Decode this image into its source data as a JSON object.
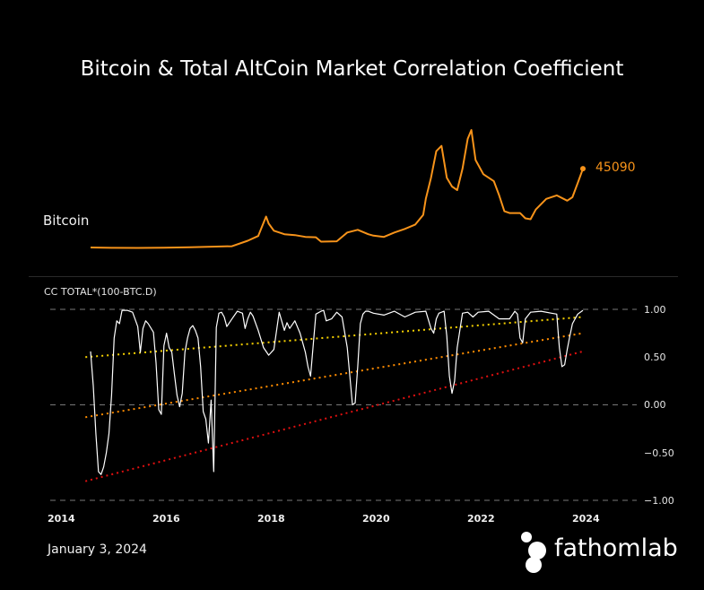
{
  "title": "Bitcoin & Total AltCoin Market Correlation Coefficient",
  "date": "January 3, 2024",
  "brand": "fathomlab",
  "chart_data": [
    {
      "type": "line",
      "name": "bitcoin-price",
      "label": "Bitcoin",
      "color": "#f7931a",
      "last_value_label": "45090",
      "x": [
        2014.6,
        2015.0,
        2015.5,
        2016.0,
        2016.5,
        2017.0,
        2017.3,
        2017.6,
        2017.8,
        2017.95,
        2018.0,
        2018.1,
        2018.3,
        2018.5,
        2018.7,
        2018.9,
        2019.0,
        2019.3,
        2019.5,
        2019.7,
        2019.9,
        2020.0,
        2020.2,
        2020.4,
        2020.6,
        2020.8,
        2020.95,
        2021.0,
        2021.1,
        2021.2,
        2021.3,
        2021.4,
        2021.5,
        2021.6,
        2021.7,
        2021.8,
        2021.87,
        2021.95,
        2022.1,
        2022.3,
        2022.4,
        2022.5,
        2022.6,
        2022.8,
        2022.9,
        2023.0,
        2023.1,
        2023.3,
        2023.5,
        2023.7,
        2023.8,
        2023.9,
        2024.0
      ],
      "y": [
        500,
        300,
        250,
        430,
        650,
        1000,
        1200,
        4300,
        7000,
        18000,
        14000,
        10000,
        8000,
        7500,
        6500,
        6300,
        3800,
        4000,
        9000,
        10500,
        8000,
        7200,
        6500,
        9000,
        11000,
        13500,
        19000,
        28000,
        40000,
        55000,
        58000,
        40000,
        35000,
        33000,
        45000,
        62000,
        67000,
        50000,
        42000,
        38000,
        30000,
        21000,
        20000,
        20000,
        17000,
        16500,
        22000,
        28000,
        30000,
        27000,
        29000,
        37000,
        45090
      ],
      "y_scale": "linear"
    },
    {
      "type": "line",
      "name": "correlation-coefficient",
      "label": "CC TOTAL*(100-BTC.D)",
      "yticks": [
        "1.00",
        "0.50",
        "0.00",
        "−0.50",
        "−1.00"
      ],
      "ylim": [
        -1,
        1
      ],
      "xticks": [
        "2014",
        "2016",
        "2018",
        "2020",
        "2022",
        "2024"
      ],
      "xlim": [
        2013.8,
        2025.0
      ],
      "gridlines": [
        1.0,
        0.0,
        -1.0
      ],
      "series": [
        {
          "name": "correlation",
          "color": "#ffffff",
          "x": [
            2014.6,
            2014.65,
            2014.7,
            2014.75,
            2014.8,
            2014.85,
            2014.9,
            2014.95,
            2015.0,
            2015.05,
            2015.1,
            2015.15,
            2015.2,
            2015.3,
            2015.4,
            2015.5,
            2015.55,
            2015.6,
            2015.65,
            2015.7,
            2015.8,
            2015.85,
            2015.9,
            2015.95,
            2016.0,
            2016.05,
            2016.1,
            2016.15,
            2016.2,
            2016.25,
            2016.3,
            2016.35,
            2016.4,
            2016.45,
            2016.5,
            2016.55,
            2016.6,
            2016.65,
            2016.7,
            2016.75,
            2016.8,
            2016.85,
            2016.9,
            2016.95,
            2017.0,
            2017.05,
            2017.1,
            2017.15,
            2017.2,
            2017.3,
            2017.4,
            2017.5,
            2017.55,
            2017.6,
            2017.65,
            2017.7,
            2017.8,
            2017.9,
            2018.0,
            2018.1,
            2018.2,
            2018.3,
            2018.35,
            2018.4,
            2018.5,
            2018.6,
            2018.7,
            2018.75,
            2018.8,
            2018.9,
            2019.0,
            2019.05,
            2019.1,
            2019.2,
            2019.3,
            2019.4,
            2019.5,
            2019.55,
            2019.6,
            2019.65,
            2019.7,
            2019.75,
            2019.8,
            2019.85,
            2019.9,
            2020.0,
            2020.2,
            2020.4,
            2020.6,
            2020.8,
            2021.0,
            2021.1,
            2021.15,
            2021.2,
            2021.25,
            2021.3,
            2021.35,
            2021.4,
            2021.45,
            2021.5,
            2021.55,
            2021.6,
            2021.7,
            2021.8,
            2021.9,
            2022.0,
            2022.2,
            2022.4,
            2022.6,
            2022.7,
            2022.75,
            2022.8,
            2022.85,
            2022.9,
            2023.0,
            2023.2,
            2023.4,
            2023.5,
            2023.55,
            2023.6,
            2023.65,
            2023.7,
            2023.75,
            2023.8,
            2023.9,
            2024.0
          ],
          "y": [
            0.56,
            0.2,
            -0.3,
            -0.7,
            -0.73,
            -0.65,
            -0.5,
            -0.3,
            0.1,
            0.7,
            0.88,
            0.85,
            0.99,
            0.99,
            0.97,
            0.82,
            0.55,
            0.8,
            0.88,
            0.85,
            0.76,
            0.44,
            -0.05,
            -0.1,
            0.62,
            0.75,
            0.6,
            0.55,
            0.32,
            0.1,
            -0.02,
            0.12,
            0.55,
            0.7,
            0.8,
            0.83,
            0.78,
            0.7,
            0.4,
            -0.07,
            -0.15,
            -0.4,
            0.05,
            -0.7,
            0.81,
            0.96,
            0.97,
            0.92,
            0.82,
            0.9,
            0.98,
            0.96,
            0.8,
            0.9,
            0.97,
            0.93,
            0.78,
            0.6,
            0.52,
            0.58,
            0.97,
            0.78,
            0.86,
            0.8,
            0.88,
            0.75,
            0.55,
            0.4,
            0.3,
            0.95,
            0.98,
            0.99,
            0.88,
            0.9,
            0.97,
            0.92,
            0.6,
            0.3,
            0.0,
            0.02,
            0.4,
            0.85,
            0.95,
            0.98,
            0.98,
            0.96,
            0.94,
            0.98,
            0.92,
            0.97,
            0.98,
            0.8,
            0.75,
            0.9,
            0.96,
            0.97,
            0.98,
            0.72,
            0.3,
            0.12,
            0.25,
            0.6,
            0.96,
            0.97,
            0.92,
            0.97,
            0.98,
            0.9,
            0.9,
            0.98,
            0.95,
            0.7,
            0.65,
            0.9,
            0.97,
            0.98,
            0.96,
            0.95,
            0.6,
            0.4,
            0.42,
            0.58,
            0.72,
            0.85,
            0.95,
            0.99
          ]
        },
        {
          "name": "trend-upper",
          "color": "#f5d000",
          "style": "dotted",
          "x": [
            2014.5,
            2024.0
          ],
          "y": [
            0.5,
            0.92
          ]
        },
        {
          "name": "trend-middle",
          "color": "#ff8c00",
          "style": "dotted",
          "x": [
            2014.5,
            2024.0
          ],
          "y": [
            -0.13,
            0.75
          ]
        },
        {
          "name": "trend-lower",
          "color": "#e01010",
          "style": "dotted",
          "x": [
            2014.5,
            2024.0
          ],
          "y": [
            -0.8,
            0.56
          ]
        }
      ]
    }
  ]
}
